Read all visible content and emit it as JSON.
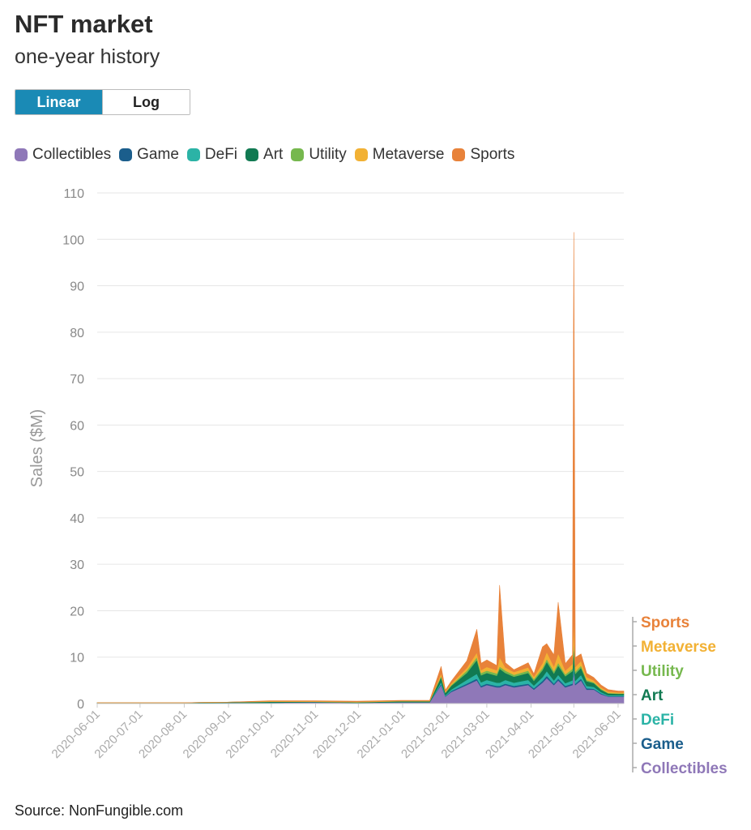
{
  "header": {
    "title": "NFT market",
    "subtitle": "one-year history"
  },
  "scale_toggle": {
    "linear_label": "Linear",
    "log_label": "Log",
    "selected": "Linear"
  },
  "source": "Source: NonFungible.com",
  "colors": {
    "Collectibles": "#8f78b8",
    "Game": "#1b5e8c",
    "DeFi": "#2bb3a6",
    "Art": "#117a52",
    "Utility": "#76b84e",
    "Metaverse": "#f2b134",
    "Sports": "#e8823a",
    "toggle_active": "#1a8ab5"
  },
  "legend": [
    "Collectibles",
    "Game",
    "DeFi",
    "Art",
    "Utility",
    "Metaverse",
    "Sports"
  ],
  "end_labels": [
    "Sports",
    "Metaverse",
    "Utility",
    "Art",
    "DeFi",
    "Game",
    "Collectibles"
  ],
  "chart_data": {
    "type": "area",
    "stacked": true,
    "ylabel": "Sales ($M)",
    "ylim": [
      0,
      110
    ],
    "yticks": [
      0,
      10,
      20,
      30,
      40,
      50,
      60,
      70,
      80,
      90,
      100,
      110
    ],
    "xlim": [
      "2020-06-01",
      "2021-06-05"
    ],
    "xticks": [
      "2020-06-01",
      "2020-07-01",
      "2020-08-01",
      "2020-09-01",
      "2020-10-01",
      "2020-11-01",
      "2020-12-01",
      "2021-01-01",
      "2021-02-01",
      "2021-03-01",
      "2021-04-01",
      "2021-05-01",
      "2021-06-01"
    ],
    "grid": true,
    "legend_position": "top",
    "x": [
      "2020-06-01",
      "2020-07-01",
      "2020-08-01",
      "2020-08-31",
      "2020-09-30",
      "2020-10-31",
      "2020-11-30",
      "2020-12-31",
      "2021-01-20",
      "2021-01-28",
      "2021-01-31",
      "2021-02-04",
      "2021-02-15",
      "2021-02-22",
      "2021-02-25",
      "2021-03-01",
      "2021-03-08",
      "2021-03-10",
      "2021-03-14",
      "2021-03-20",
      "2021-03-30",
      "2021-04-03",
      "2021-04-09",
      "2021-04-12",
      "2021-04-17",
      "2021-04-20",
      "2021-04-25",
      "2021-04-30",
      "2021-05-01",
      "2021-05-02",
      "2021-05-06",
      "2021-05-10",
      "2021-05-15",
      "2021-05-20",
      "2021-05-25",
      "2021-06-01",
      "2021-06-05"
    ],
    "series": [
      {
        "name": "Collectibles",
        "values": [
          0.1,
          0.1,
          0.1,
          0.2,
          0.2,
          0.3,
          0.2,
          0.3,
          0.3,
          4.0,
          1.5,
          2.5,
          4.0,
          5.0,
          3.5,
          4.0,
          3.5,
          3.5,
          4.0,
          3.5,
          4.0,
          3.0,
          4.5,
          5.5,
          4.0,
          5.0,
          3.5,
          4.0,
          7.0,
          4.0,
          5.0,
          3.0,
          3.0,
          2.0,
          1.5,
          1.5,
          1.5
        ]
      },
      {
        "name": "Game",
        "values": [
          0.0,
          0.0,
          0.0,
          0.0,
          0.0,
          0.0,
          0.0,
          0.0,
          0.0,
          0.2,
          0.1,
          0.2,
          0.3,
          0.4,
          0.3,
          0.3,
          0.3,
          0.3,
          0.3,
          0.3,
          0.3,
          0.3,
          0.4,
          0.5,
          0.3,
          0.4,
          0.3,
          0.3,
          0.5,
          0.3,
          0.4,
          0.3,
          0.2,
          0.2,
          0.1,
          0.1,
          0.1
        ]
      },
      {
        "name": "DeFi",
        "values": [
          0.0,
          0.0,
          0.0,
          0.0,
          0.0,
          0.0,
          0.0,
          0.0,
          0.0,
          0.5,
          0.2,
          0.3,
          0.8,
          1.0,
          0.8,
          0.8,
          0.7,
          0.7,
          0.8,
          0.7,
          0.8,
          0.6,
          0.8,
          1.0,
          0.7,
          0.8,
          0.6,
          0.7,
          1.0,
          0.6,
          0.8,
          0.5,
          0.4,
          0.3,
          0.2,
          0.2,
          0.2
        ]
      },
      {
        "name": "Art",
        "values": [
          0.1,
          0.1,
          0.1,
          0.1,
          0.2,
          0.1,
          0.1,
          0.2,
          0.2,
          1.0,
          0.5,
          0.8,
          1.5,
          3.0,
          1.5,
          1.5,
          1.5,
          3.0,
          1.5,
          1.3,
          1.5,
          1.0,
          1.5,
          2.0,
          1.5,
          2.0,
          1.5,
          2.0,
          4.0,
          1.5,
          1.5,
          1.0,
          0.8,
          0.5,
          0.4,
          0.3,
          0.3
        ]
      },
      {
        "name": "Utility",
        "values": [
          0.0,
          0.0,
          0.0,
          0.0,
          0.0,
          0.0,
          0.0,
          0.0,
          0.0,
          0.3,
          0.1,
          0.2,
          0.5,
          0.6,
          0.5,
          0.5,
          0.5,
          0.5,
          0.5,
          0.4,
          0.5,
          0.4,
          0.5,
          0.6,
          0.5,
          0.6,
          0.4,
          0.5,
          1.0,
          0.5,
          0.5,
          0.3,
          0.2,
          0.2,
          0.1,
          0.1,
          0.1
        ]
      },
      {
        "name": "Metaverse",
        "values": [
          0.0,
          0.0,
          0.0,
          0.0,
          0.1,
          0.1,
          0.1,
          0.1,
          0.1,
          0.5,
          0.2,
          0.3,
          0.6,
          1.0,
          0.6,
          0.8,
          0.7,
          2.0,
          0.7,
          0.6,
          0.7,
          0.5,
          1.0,
          1.5,
          1.0,
          2.0,
          0.8,
          1.0,
          5.0,
          1.0,
          1.0,
          0.6,
          0.4,
          0.3,
          0.3,
          0.2,
          0.2
        ]
      },
      {
        "name": "Sports",
        "values": [
          0.0,
          0.0,
          0.0,
          0.0,
          0.1,
          0.1,
          0.1,
          0.1,
          0.1,
          1.5,
          0.3,
          0.5,
          1.5,
          5.0,
          1.5,
          1.5,
          1.0,
          15.5,
          1.0,
          0.5,
          1.0,
          0.6,
          3.5,
          1.8,
          2.5,
          11.0,
          1.5,
          2.0,
          83.0,
          2.0,
          1.5,
          0.8,
          0.6,
          0.5,
          0.4,
          0.3,
          0.3
        ]
      }
    ]
  }
}
